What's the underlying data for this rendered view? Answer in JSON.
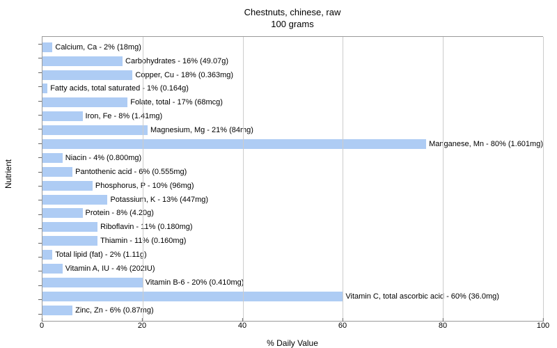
{
  "chart": {
    "type": "horizontal-bar",
    "title_line1": "Chestnuts, chinese, raw",
    "title_line2": "100 grams",
    "title_fontsize": 13,
    "xlabel": "% Daily Value",
    "ylabel": "Nutrient",
    "label_fontsize": 12,
    "xlim_min": 0,
    "xlim_max": 100,
    "xticks": [
      0,
      20,
      40,
      60,
      80,
      100
    ],
    "bar_color": "#aeccf4",
    "grid_color": "#cccccc",
    "axis_color": "#999999",
    "background_color": "#ffffff",
    "text_color": "#000000",
    "bar_label_fontsize": 11,
    "tick_fontsize": 11,
    "bars": [
      {
        "label": "Calcium, Ca - 2% (18mg)",
        "value": 2
      },
      {
        "label": "Carbohydrates - 16% (49.07g)",
        "value": 16
      },
      {
        "label": "Copper, Cu - 18% (0.363mg)",
        "value": 18
      },
      {
        "label": "Fatty acids, total saturated - 1% (0.164g)",
        "value": 1
      },
      {
        "label": "Folate, total - 17% (68mcg)",
        "value": 17
      },
      {
        "label": "Iron, Fe - 8% (1.41mg)",
        "value": 8
      },
      {
        "label": "Magnesium, Mg - 21% (84mg)",
        "value": 21
      },
      {
        "label": "Manganese, Mn - 80% (1.601mg)",
        "value": 80
      },
      {
        "label": "Niacin - 4% (0.800mg)",
        "value": 4
      },
      {
        "label": "Pantothenic acid - 6% (0.555mg)",
        "value": 6
      },
      {
        "label": "Phosphorus, P - 10% (96mg)",
        "value": 10
      },
      {
        "label": "Potassium, K - 13% (447mg)",
        "value": 13
      },
      {
        "label": "Protein - 8% (4.20g)",
        "value": 8
      },
      {
        "label": "Riboflavin - 11% (0.180mg)",
        "value": 11
      },
      {
        "label": "Thiamin - 11% (0.160mg)",
        "value": 11
      },
      {
        "label": "Total lipid (fat) - 2% (1.11g)",
        "value": 2
      },
      {
        "label": "Vitamin A, IU - 4% (202IU)",
        "value": 4
      },
      {
        "label": "Vitamin B-6 - 20% (0.410mg)",
        "value": 20
      },
      {
        "label": "Vitamin C, total ascorbic acid - 60% (36.0mg)",
        "value": 60
      },
      {
        "label": "Zinc, Zn - 6% (0.87mg)",
        "value": 6
      }
    ]
  }
}
